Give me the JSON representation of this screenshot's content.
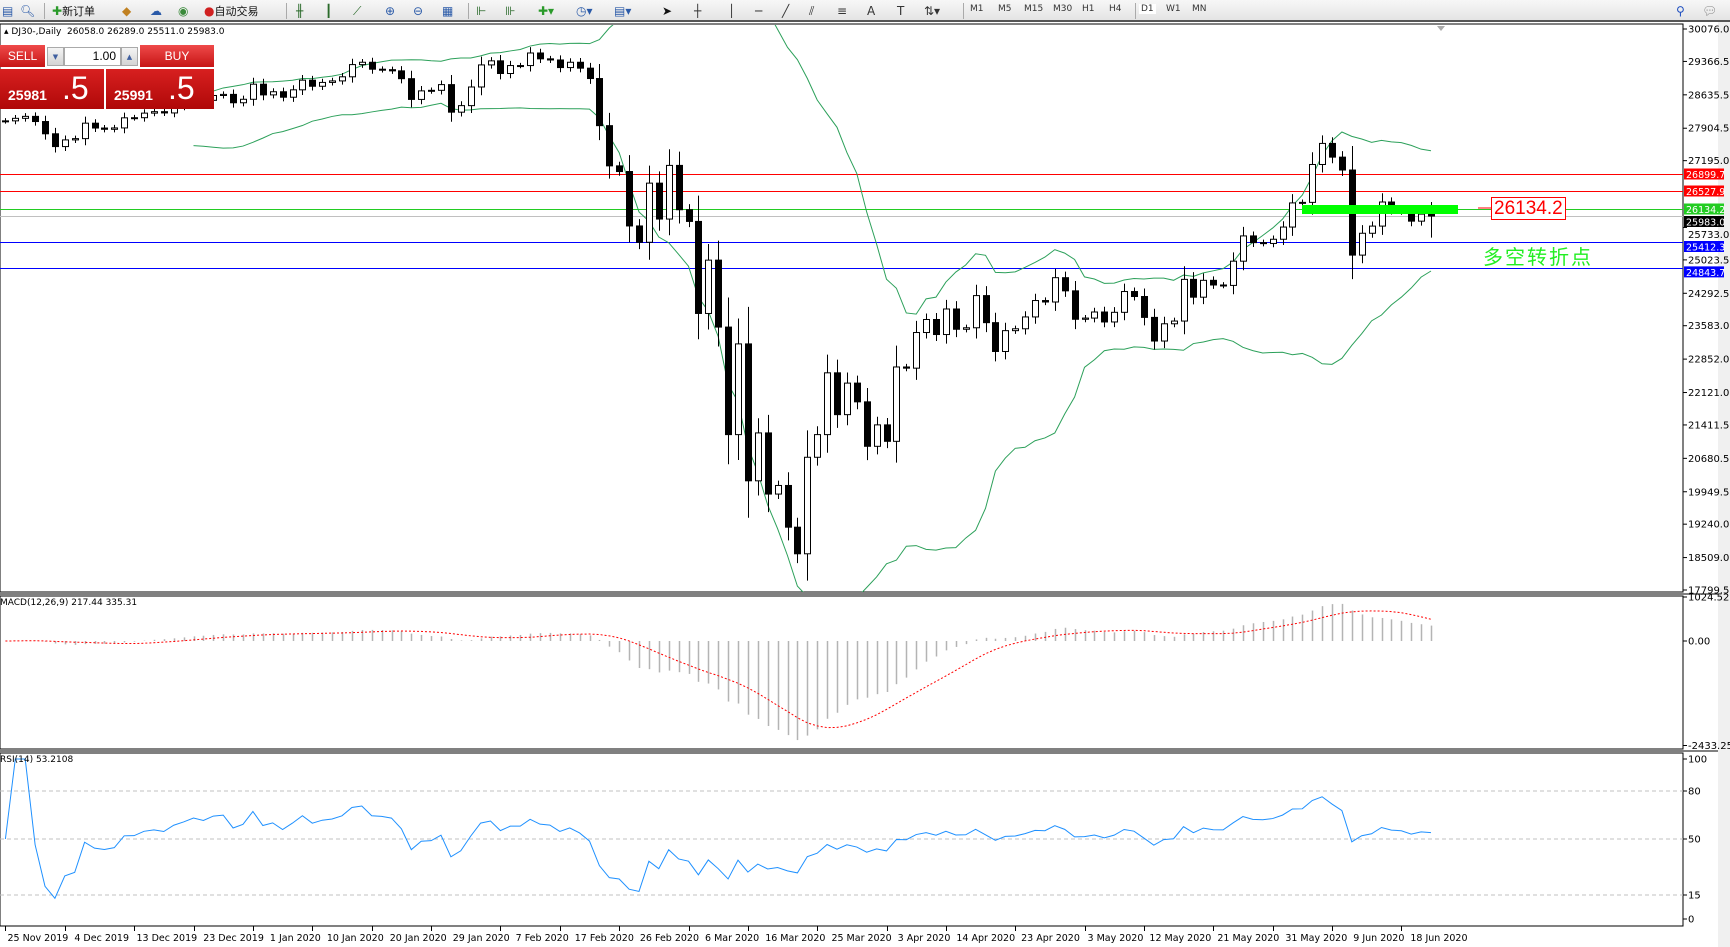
{
  "toolbar": {
    "new_order": "新订单",
    "auto_trading": "自动交易",
    "icons": [
      "profiles-icon",
      "market-watch-icon",
      "new-order-icon",
      "metaeditor-icon",
      "navigator-icon",
      "signals-icon",
      "auto-trading-icon",
      "bar-chart-icon",
      "candlestick-icon",
      "line-chart-icon",
      "zoom-in-icon",
      "zoom-out-icon",
      "tile-windows-icon",
      "autoscroll-icon",
      "chart-shift-icon",
      "indicators-icon",
      "periods-icon",
      "templates-icon",
      "cursor-icon",
      "crosshair-icon",
      "vertical-line-icon",
      "horizontal-line-icon",
      "trendline-icon",
      "equidistant-channel-icon",
      "fibonacci-icon",
      "text-icon",
      "text-label-icon",
      "arrows-icon",
      "search-icon",
      "chat-icon"
    ],
    "timeframes": [
      "M1",
      "M5",
      "M15",
      "M30",
      "H1",
      "H4",
      "D1",
      "W1",
      "MN"
    ],
    "active_timeframe": "D1"
  },
  "chart": {
    "symbol": "DJ30-,Daily",
    "ohlc_text": "26058.0 26289.0 25511.0 25983.0"
  },
  "trade_panel": {
    "sell_label": "SELL",
    "buy_label": "BUY",
    "lot": "1.00",
    "sell_price_main": "25981",
    "sell_price_big": ".5",
    "buy_price_main": "25991",
    "buy_price_big": ".5",
    "color": "#c61414"
  },
  "annotations": {
    "level_label": "26134.2",
    "note": "多空转折点",
    "note_color": "#22ee22",
    "label_color": "#ff0000"
  },
  "price_axis": [
    "30076.0",
    "29366.5",
    "28635.5",
    "27904.5",
    "27195.0",
    "25733.0",
    "25023.5",
    "24292.5",
    "23583.0",
    "22852.0",
    "22121.0",
    "21411.5",
    "20680.5",
    "19949.5",
    "19240.0",
    "18509.0",
    "17799.5"
  ],
  "hlines": [
    {
      "price": 26899.7,
      "label": "26899.7",
      "color": "#ff0000"
    },
    {
      "price": 26527.9,
      "label": "26527.9",
      "color": "#ff0000"
    },
    {
      "price": 26134.2,
      "label": "26134.2",
      "color": "#22cc22"
    },
    {
      "price": 25983.0,
      "label": "25983.0",
      "color": "#000000",
      "line": "#c0c0c0"
    },
    {
      "price": 25412.3,
      "label": "25412.3",
      "color": "#0000ff"
    },
    {
      "price": 24843.7,
      "label": "24843.7",
      "color": "#0000ff"
    }
  ],
  "macd": {
    "label": "MACD(12,26,9) 217.44 335.31",
    "ticks": [
      "1024.52",
      "0.00",
      "-2433.25"
    ],
    "signal_color": "#ff0000",
    "hist_color": "#b4b4b4"
  },
  "rsi": {
    "label": "RSI(14) 53.2108",
    "ticks": [
      "100",
      "80",
      "50",
      "15",
      "0"
    ],
    "color": "#1e90ff"
  },
  "date_axis": [
    {
      "label": "25 Nov 2019",
      "date": "2019-11-25"
    },
    {
      "label": "4 Dec 2019",
      "date": "2019-12-04"
    },
    {
      "label": "13 Dec 2019",
      "date": "2019-12-13"
    },
    {
      "label": "23 Dec 2019",
      "date": "2019-12-23"
    },
    {
      "label": "1 Jan 2020",
      "date": "2020-01-02"
    },
    {
      "label": "10 Jan 2020",
      "date": "2020-01-10"
    },
    {
      "label": "20 Jan 2020",
      "date": "2020-01-21"
    },
    {
      "label": "29 Jan 2020",
      "date": "2020-01-29"
    },
    {
      "label": "7 Feb 2020",
      "date": "2020-02-07"
    },
    {
      "label": "17 Feb 2020",
      "date": "2020-02-18"
    },
    {
      "label": "26 Feb 2020",
      "date": "2020-02-26"
    },
    {
      "label": "6 Mar 2020",
      "date": "2020-03-06"
    },
    {
      "label": "16 Mar 2020",
      "date": "2020-03-16"
    },
    {
      "label": "25 Mar 2020",
      "date": "2020-03-25"
    },
    {
      "label": "3 Apr 2020",
      "date": "2020-04-03"
    },
    {
      "label": "14 Apr 2020",
      "date": "2020-04-14"
    },
    {
      "label": "23 Apr 2020",
      "date": "2020-04-23"
    },
    {
      "label": "3 May 2020",
      "date": "2020-05-04"
    },
    {
      "label": "12 May 2020",
      "date": "2020-05-12"
    },
    {
      "label": "21 May 2020",
      "date": "2020-05-21"
    },
    {
      "label": "31 May 2020",
      "date": "2020-06-01"
    },
    {
      "label": "9 Jun 2020",
      "date": "2020-06-09"
    },
    {
      "label": "18 Jun 2020",
      "date": "2020-06-18"
    }
  ],
  "chart_data": {
    "type": "candlestick",
    "indicators": [
      "Bollinger Bands(20,2)",
      "MACD(12,26,9)",
      "RSI(14)"
    ],
    "band_color": "#2ca05a",
    "ylim": [
      17799.5,
      30076.0
    ],
    "last_bar": {
      "open": 26058.0,
      "high": 26289.0,
      "low": 25511.0,
      "close": 25983.0
    },
    "dates": [
      "2019-11-25",
      "2019-11-26",
      "2019-11-27",
      "2019-11-29",
      "2019-12-02",
      "2019-12-03",
      "2019-12-04",
      "2019-12-05",
      "2019-12-06",
      "2019-12-09",
      "2019-12-10",
      "2019-12-11",
      "2019-12-12",
      "2019-12-13",
      "2019-12-16",
      "2019-12-17",
      "2019-12-18",
      "2019-12-19",
      "2019-12-20",
      "2019-12-23",
      "2019-12-24",
      "2019-12-26",
      "2019-12-27",
      "2019-12-30",
      "2019-12-31",
      "2020-01-02",
      "2020-01-03",
      "2020-01-06",
      "2020-01-07",
      "2020-01-08",
      "2020-01-09",
      "2020-01-10",
      "2020-01-13",
      "2020-01-14",
      "2020-01-15",
      "2020-01-16",
      "2020-01-17",
      "2020-01-21",
      "2020-01-22",
      "2020-01-23",
      "2020-01-24",
      "2020-01-27",
      "2020-01-28",
      "2020-01-29",
      "2020-01-30",
      "2020-01-31",
      "2020-02-03",
      "2020-02-04",
      "2020-02-05",
      "2020-02-06",
      "2020-02-07",
      "2020-02-10",
      "2020-02-11",
      "2020-02-12",
      "2020-02-13",
      "2020-02-14",
      "2020-02-18",
      "2020-02-19",
      "2020-02-20",
      "2020-02-21",
      "2020-02-24",
      "2020-02-25",
      "2020-02-26",
      "2020-02-27",
      "2020-02-28",
      "2020-03-02",
      "2020-03-03",
      "2020-03-04",
      "2020-03-05",
      "2020-03-06",
      "2020-03-09",
      "2020-03-10",
      "2020-03-11",
      "2020-03-12",
      "2020-03-13",
      "2020-03-16",
      "2020-03-17",
      "2020-03-18",
      "2020-03-19",
      "2020-03-20",
      "2020-03-23",
      "2020-03-24",
      "2020-03-25",
      "2020-03-26",
      "2020-03-27",
      "2020-03-30",
      "2020-03-31",
      "2020-04-01",
      "2020-04-02",
      "2020-04-03",
      "2020-04-06",
      "2020-04-07",
      "2020-04-08",
      "2020-04-09",
      "2020-04-13",
      "2020-04-14",
      "2020-04-15",
      "2020-04-16",
      "2020-04-17",
      "2020-04-20",
      "2020-04-21",
      "2020-04-22",
      "2020-04-23",
      "2020-04-24",
      "2020-04-27",
      "2020-04-28",
      "2020-04-29",
      "2020-04-30",
      "2020-05-01",
      "2020-05-04",
      "2020-05-05",
      "2020-05-06",
      "2020-05-07",
      "2020-05-08",
      "2020-05-11",
      "2020-05-12",
      "2020-05-13",
      "2020-05-14",
      "2020-05-15",
      "2020-05-18",
      "2020-05-19",
      "2020-05-20",
      "2020-05-21",
      "2020-05-22",
      "2020-05-26",
      "2020-05-27",
      "2020-05-28",
      "2020-05-29",
      "2020-06-01",
      "2020-06-02",
      "2020-06-03",
      "2020-06-04",
      "2020-06-05",
      "2020-06-08",
      "2020-06-09",
      "2020-06-10",
      "2020-06-11",
      "2020-06-12",
      "2020-06-15",
      "2020-06-16",
      "2020-06-17",
      "2020-06-18",
      "2020-06-19",
      "2020-06-22",
      "2020-06-23"
    ],
    "close": [
      28066,
      28121,
      28164,
      28051,
      27783,
      27503,
      27649,
      27677,
      28015,
      27909,
      27881,
      27911,
      28132,
      28135,
      28235,
      28267,
      28239,
      28377,
      28455,
      28551,
      28515,
      28621,
      28645,
      28462,
      28538,
      28868,
      28634,
      28703,
      28583,
      28745,
      28956,
      28823,
      28907,
      28940,
      29030,
      29297,
      29348,
      29196,
      29186,
      29160,
      28989,
      28535,
      28722,
      28734,
      28859,
      28256,
      28399,
      28807,
      29290,
      29379,
      29102,
      29276,
      29276,
      29551,
      29423,
      29398,
      29232,
      29348,
      29219,
      28992,
      27961,
      27081,
      26957,
      25766,
      25409,
      26703,
      25917,
      27091,
      26121,
      25865,
      23851,
      25018,
      23553,
      21200,
      23185,
      20189,
      21237,
      19899,
      20087,
      19174,
      18592,
      20704,
      21200,
      22552,
      21637,
      22327,
      21917,
      20944,
      21413,
      21053,
      22680,
      22654,
      23434,
      23719,
      23390,
      23949,
      23505,
      23538,
      24242,
      23650,
      23019,
      23475,
      23516,
      23775,
      24134,
      24102,
      24634,
      24346,
      23724,
      23750,
      23883,
      23665,
      23876,
      24331,
      24222,
      23765,
      23248,
      23625,
      23685,
      24597,
      24207,
      24576,
      24474,
      24465,
      24995,
      25548,
      25401,
      25383,
      25475,
      25742,
      26270,
      26282,
      27111,
      27572,
      27272,
      26990,
      25128,
      25606,
      25763,
      26290,
      26120,
      26080,
      25871,
      26025,
      25983
    ]
  }
}
